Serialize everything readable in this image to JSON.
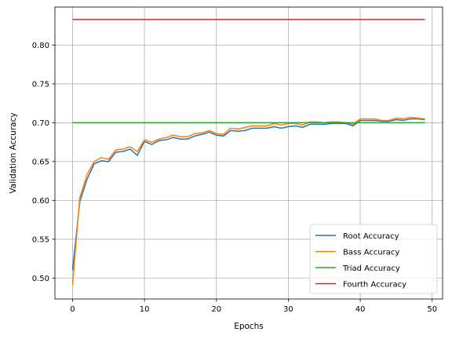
{
  "chart_data": {
    "type": "line",
    "title": "",
    "xlabel": "Epochs",
    "ylabel": "Validation Accuracy",
    "xlim": [
      -2.45,
      51.45
    ],
    "ylim": [
      0.473,
      0.849
    ],
    "xticks": [
      0,
      10,
      20,
      30,
      40,
      50
    ],
    "yticks": [
      0.5,
      0.55,
      0.6,
      0.65,
      0.7,
      0.75,
      0.8
    ],
    "grid": true,
    "legend_position": "lower-right",
    "x": [
      0,
      1,
      2,
      3,
      4,
      5,
      6,
      7,
      8,
      9,
      10,
      11,
      12,
      13,
      14,
      15,
      16,
      17,
      18,
      19,
      20,
      21,
      22,
      23,
      24,
      25,
      26,
      27,
      28,
      29,
      30,
      31,
      32,
      33,
      34,
      35,
      36,
      37,
      38,
      39,
      40,
      41,
      42,
      43,
      44,
      45,
      46,
      47,
      48,
      49
    ],
    "series": [
      {
        "name": "Root Accuracy",
        "color": "#1f77b4",
        "values": [
          0.51,
          0.598,
          0.627,
          0.647,
          0.651,
          0.65,
          0.662,
          0.663,
          0.666,
          0.658,
          0.676,
          0.672,
          0.677,
          0.678,
          0.681,
          0.679,
          0.679,
          0.683,
          0.685,
          0.688,
          0.684,
          0.683,
          0.69,
          0.689,
          0.69,
          0.693,
          0.693,
          0.693,
          0.695,
          0.693,
          0.695,
          0.696,
          0.694,
          0.698,
          0.698,
          0.698,
          0.699,
          0.699,
          0.699,
          0.696,
          0.703,
          0.703,
          0.703,
          0.702,
          0.702,
          0.704,
          0.703,
          0.705,
          0.705,
          0.704
        ]
      },
      {
        "name": "Bass Accuracy",
        "color": "#ff7f0e",
        "values": [
          0.491,
          0.603,
          0.633,
          0.65,
          0.655,
          0.653,
          0.665,
          0.666,
          0.669,
          0.663,
          0.678,
          0.675,
          0.679,
          0.681,
          0.684,
          0.682,
          0.682,
          0.686,
          0.687,
          0.69,
          0.686,
          0.685,
          0.693,
          0.692,
          0.694,
          0.696,
          0.696,
          0.696,
          0.699,
          0.697,
          0.699,
          0.699,
          0.697,
          0.701,
          0.701,
          0.7,
          0.701,
          0.701,
          0.7,
          0.698,
          0.705,
          0.705,
          0.705,
          0.703,
          0.703,
          0.706,
          0.705,
          0.707,
          0.706,
          0.705
        ]
      },
      {
        "name": "Triad Accuracy",
        "color": "#2ca02c",
        "values": [
          0.7,
          0.7,
          0.7,
          0.7,
          0.7,
          0.7,
          0.7,
          0.7,
          0.7,
          0.7,
          0.7,
          0.7,
          0.7,
          0.7,
          0.7,
          0.7,
          0.7,
          0.7,
          0.7,
          0.7,
          0.7,
          0.7,
          0.7,
          0.7,
          0.7,
          0.7,
          0.7,
          0.7,
          0.7,
          0.7,
          0.7,
          0.7,
          0.7,
          0.7,
          0.7,
          0.7,
          0.7,
          0.7,
          0.7,
          0.7,
          0.7,
          0.7,
          0.7,
          0.7,
          0.7,
          0.7,
          0.7,
          0.7,
          0.7,
          0.7
        ]
      },
      {
        "name": "Fourth Accuracy",
        "color": "#d62728",
        "values": [
          0.833,
          0.833,
          0.833,
          0.833,
          0.833,
          0.833,
          0.833,
          0.833,
          0.833,
          0.833,
          0.833,
          0.833,
          0.833,
          0.833,
          0.833,
          0.833,
          0.833,
          0.833,
          0.833,
          0.833,
          0.833,
          0.833,
          0.833,
          0.833,
          0.833,
          0.833,
          0.833,
          0.833,
          0.833,
          0.833,
          0.833,
          0.833,
          0.833,
          0.833,
          0.833,
          0.833,
          0.833,
          0.833,
          0.833,
          0.833,
          0.833,
          0.833,
          0.833,
          0.833,
          0.833,
          0.833,
          0.833,
          0.833,
          0.833,
          0.833
        ]
      }
    ]
  }
}
